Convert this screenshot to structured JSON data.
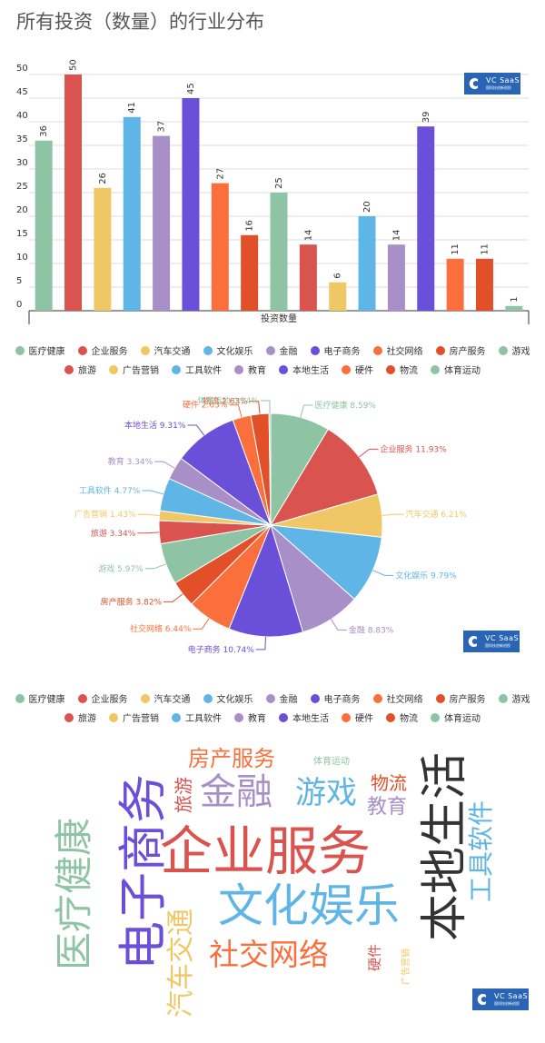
{
  "title": "所有投资（数量）的行业分布",
  "badge": {
    "line1": "VC SaaS",
    "line2": "国科技创新创投"
  },
  "chart_data": [
    {
      "type": "bar",
      "title": "所有投资（数量）的行业分布",
      "xlabel": "投资数量",
      "ylabel": "",
      "ylim": [
        0,
        50
      ],
      "yticks": [
        0,
        5,
        10,
        15,
        20,
        25,
        30,
        35,
        40,
        45,
        50
      ],
      "categories": [
        "医疗健康",
        "企业服务",
        "汽车交通",
        "文化娱乐",
        "金融",
        "电子商务",
        "社交网络",
        "房产服务",
        "游戏",
        "旅游",
        "广告营销",
        "工具软件",
        "教育",
        "本地生活",
        "硬件",
        "物流",
        "体育运动"
      ],
      "values": [
        36,
        50,
        26,
        41,
        37,
        45,
        27,
        16,
        25,
        14,
        6,
        20,
        14,
        39,
        11,
        11,
        1
      ],
      "colors": [
        "#8ec4a4",
        "#d9534f",
        "#efc865",
        "#5fb5e5",
        "#a98fc8",
        "#6a4fd8",
        "#fa6f3c",
        "#e2502a",
        "#8ec4a4",
        "#d9534f",
        "#efc865",
        "#5fb5e5",
        "#a98fc8",
        "#6a4fd8",
        "#fa6f3c",
        "#e2502a",
        "#8ec4a4"
      ],
      "grid": true,
      "legend": "bottom"
    },
    {
      "type": "pie",
      "categories": [
        "医疗健康",
        "企业服务",
        "汽车交通",
        "文化娱乐",
        "金融",
        "电子商务",
        "社交网络",
        "房产服务",
        "游戏",
        "旅游",
        "广告营销",
        "工具软件",
        "教育",
        "本地生活",
        "硬件",
        "物流",
        "体育运动"
      ],
      "values": [
        8.59,
        11.93,
        6.21,
        9.79,
        8.83,
        10.74,
        6.44,
        3.82,
        5.97,
        3.34,
        1.43,
        4.77,
        3.34,
        9.31,
        2.63,
        2.63,
        0.24
      ],
      "labels": [
        "医疗健康 8.59%",
        "企业服务 11.93%",
        "汽车交通 6.21%",
        "文化娱乐 9.79%",
        "金融 8.83%",
        "电子商务 10.74%",
        "社交网络 6.44%",
        "房产服务 3.82%",
        "游戏 5.97%",
        "旅游 3.34%",
        "广告营销 1.43%",
        "工具软件 4.77%",
        "教育 3.34%",
        "本地生活 9.31%",
        "硬件 2.63%",
        "物流 2.63%",
        "体育运动 0.24%"
      ],
      "colors": [
        "#8ec4a4",
        "#d9534f",
        "#efc865",
        "#5fb5e5",
        "#a98fc8",
        "#6a4fd8",
        "#fa6f3c",
        "#e2502a",
        "#8ec4a4",
        "#d9534f",
        "#efc865",
        "#5fb5e5",
        "#a98fc8",
        "#6a4fd8",
        "#fa6f3c",
        "#e2502a",
        "#8ec4a4"
      ],
      "legend": "bottom"
    }
  ],
  "legend_items": [
    {
      "name": "医疗健康",
      "color": "#8ec4a4"
    },
    {
      "name": "企业服务",
      "color": "#d9534f"
    },
    {
      "name": "汽车交通",
      "color": "#efc865"
    },
    {
      "name": "文化娱乐",
      "color": "#5fb5e5"
    },
    {
      "name": "金融",
      "color": "#a98fc8"
    },
    {
      "name": "电子商务",
      "color": "#6a4fd8"
    },
    {
      "name": "社交网络",
      "color": "#fa6f3c"
    },
    {
      "name": "房产服务",
      "color": "#e2502a"
    },
    {
      "name": "游戏",
      "color": "#8ec4a4"
    },
    {
      "name": "旅游",
      "color": "#d9534f"
    },
    {
      "name": "广告营销",
      "color": "#efc865"
    },
    {
      "name": "工具软件",
      "color": "#5fb5e5"
    },
    {
      "name": "教育",
      "color": "#a98fc8"
    },
    {
      "name": "本地生活",
      "color": "#6a4fd8"
    },
    {
      "name": "硬件",
      "color": "#fa6f3c"
    },
    {
      "name": "物流",
      "color": "#e2502a"
    },
    {
      "name": "体育运动",
      "color": "#8ec4a4"
    }
  ],
  "word_cloud": [
    {
      "word": "企业服务",
      "color": "#d9534f"
    },
    {
      "word": "电子商务",
      "color": "#6a4fd8"
    },
    {
      "word": "本地生活",
      "color": "#333333"
    },
    {
      "word": "文化娱乐",
      "color": "#5fb5e5"
    },
    {
      "word": "医疗健康",
      "color": "#8ec4a4"
    },
    {
      "word": "金融",
      "color": "#a98fc8"
    },
    {
      "word": "汽车交通",
      "color": "#efc865"
    },
    {
      "word": "社交网络",
      "color": "#fa6f3c"
    },
    {
      "word": "游戏",
      "color": "#5fb5e5"
    },
    {
      "word": "工具软件",
      "color": "#5fb5e5"
    },
    {
      "word": "房产服务",
      "color": "#fa6f3c"
    },
    {
      "word": "旅游",
      "color": "#d9534f"
    },
    {
      "word": "教育",
      "color": "#a98fc8"
    },
    {
      "word": "物流",
      "color": "#e2502a"
    },
    {
      "word": "硬件",
      "color": "#d9534f"
    },
    {
      "word": "广告营销",
      "color": "#efc865"
    },
    {
      "word": "体育运动",
      "color": "#8ec4a4"
    }
  ]
}
